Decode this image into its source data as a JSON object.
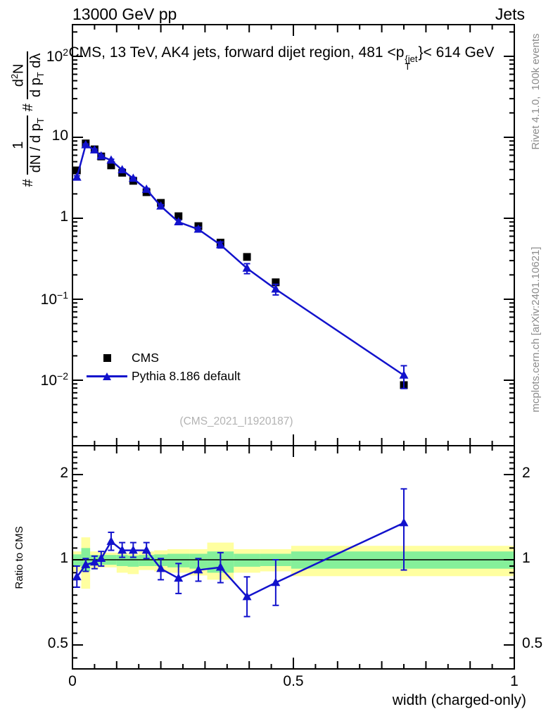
{
  "header": {
    "left": "13000 GeV pp",
    "right": "Jets"
  },
  "title": {
    "prefix": "CMS, 13 TeV, AK4 jets, forward dijet region, 481 <p",
    "sup": "{jet",
    "sub": "T",
    "suffix": "}< 614 GeV"
  },
  "ylabel": {
    "hash1": "#",
    "frac1_num": "1",
    "frac1_den": "dN / d p",
    "frac1_den_sub": "T",
    "hash2": "#",
    "frac2_num": "d",
    "frac2_num_sup": "2",
    "frac2_num_post": "N",
    "frac2_den": "d p",
    "frac2_den_sub": "T",
    "frac2_den_post": " dλ"
  },
  "legend": [
    {
      "label": "CMS",
      "marker": "square",
      "color": "#000000"
    },
    {
      "label": "Pythia 8.186 default",
      "marker": "triangle-line",
      "color": "#1212cc"
    }
  ],
  "watermark": "(CMS_2021_I1920187)",
  "side_notes": {
    "rivet": "Rivet 4.1.0,  100k events",
    "mcplots": "mcplots.cern.ch [arXiv:2401.10621]"
  },
  "xlabel": "width (charged-only)",
  "colors": {
    "pythia_blue": "#1212cc",
    "band_yellow": "#ffffa0",
    "band_green": "#85f09a",
    "frame": "#000000",
    "watermark_gray": "#b3b3b3",
    "side_gray": "#8c8c8c"
  },
  "chart_data": {
    "type": "line",
    "x_axis": {
      "label": "width (charged-only)",
      "lim": [
        0,
        1
      ],
      "tick_labels": [
        {
          "v": 0,
          "t": "0"
        },
        {
          "v": 0.5,
          "t": "0.5"
        },
        {
          "v": 1,
          "t": "1"
        }
      ]
    },
    "x_values": [
      0.01,
      0.03,
      0.05,
      0.065,
      0.0875,
      0.1125,
      0.1375,
      0.1675,
      0.2,
      0.24,
      0.285,
      0.335,
      0.395,
      0.46,
      0.75
    ],
    "main_panel": {
      "yscale": "log",
      "ylim": [
        0.00155,
        245
      ],
      "ytick_labels": [
        {
          "v": 100,
          "b": "10",
          "e": "2"
        },
        {
          "v": 10,
          "b": "10"
        },
        {
          "v": 1,
          "b": "1"
        },
        {
          "v": 0.1,
          "b": "10",
          "e": "−1"
        },
        {
          "v": 0.01,
          "b": "10",
          "e": "−2"
        }
      ],
      "series": [
        {
          "name": "CMS",
          "marker": "square",
          "color": "#000000",
          "line": false,
          "y": [
            3.9,
            8.4,
            7.1,
            5.8,
            4.5,
            3.65,
            2.9,
            2.1,
            1.55,
            1.06,
            0.8,
            0.5,
            0.333,
            0.162,
            0.0087
          ]
        },
        {
          "name": "Pythia 8.186 default",
          "marker": "triangle",
          "color": "#1212cc",
          "line": true,
          "y": [
            3.2,
            8.05,
            6.95,
            5.85,
            5.2,
            3.95,
            3.1,
            2.27,
            1.41,
            0.9,
            0.73,
            0.47,
            0.241,
            0.133,
            0.0115
          ],
          "yerr": [
            0.15,
            0.22,
            0.2,
            0.18,
            0.16,
            0.12,
            0.1,
            0.08,
            0.06,
            0.05,
            0.045,
            0.04,
            0.034,
            0.02,
            0.0036
          ]
        }
      ]
    },
    "ratio_panel": {
      "ylabel": "Ratio to CMS",
      "yscale": "log",
      "ylim": [
        0.41,
        2.54
      ],
      "unity_line": 1,
      "tick_labels": [
        {
          "v": 2,
          "t": "2"
        },
        {
          "v": 1,
          "t": "1"
        },
        {
          "v": 0.5,
          "t": "0.5"
        }
      ],
      "bands": {
        "bin_edges": [
          0,
          0.02,
          0.04,
          0.06,
          0.075,
          0.1,
          0.125,
          0.15,
          0.185,
          0.215,
          0.265,
          0.305,
          0.365,
          0.425,
          0.495,
          1.0
        ],
        "yellow_lo_hi": [
          [
            0.91,
            1.07
          ],
          [
            0.79,
            1.2
          ],
          [
            0.93,
            1.07
          ],
          [
            0.94,
            1.06
          ],
          [
            0.94,
            1.06
          ],
          [
            0.9,
            1.06
          ],
          [
            0.89,
            1.05
          ],
          [
            0.92,
            1.07
          ],
          [
            0.91,
            1.08
          ],
          [
            0.9,
            1.09
          ],
          [
            0.88,
            1.09
          ],
          [
            0.85,
            1.15
          ],
          [
            0.9,
            1.09
          ],
          [
            0.91,
            1.09
          ],
          [
            0.875,
            1.12
          ]
        ],
        "green_lo_hi": [
          [
            0.95,
            1.045
          ],
          [
            0.91,
            1.1
          ],
          [
            0.955,
            1.04
          ],
          [
            0.96,
            1.04
          ],
          [
            0.96,
            1.04
          ],
          [
            0.95,
            1.04
          ],
          [
            0.945,
            1.035
          ],
          [
            0.95,
            1.04
          ],
          [
            0.95,
            1.045
          ],
          [
            0.94,
            1.05
          ],
          [
            0.93,
            1.05
          ],
          [
            0.9,
            1.07
          ],
          [
            0.945,
            1.05
          ],
          [
            0.95,
            1.05
          ],
          [
            0.93,
            1.07
          ]
        ]
      },
      "series": {
        "name": "Pythia 8.186 default / CMS",
        "color": "#1212cc",
        "y": [
          0.87,
          0.96,
          0.98,
          1.01,
          1.16,
          1.08,
          1.08,
          1.08,
          0.93,
          0.86,
          0.92,
          0.94,
          0.74,
          0.83,
          1.35
        ],
        "y_lo": [
          0.8,
          0.91,
          0.93,
          0.95,
          1.08,
          1.02,
          1.02,
          1.01,
          0.85,
          0.76,
          0.84,
          0.83,
          0.63,
          0.69,
          0.92
        ],
        "y_hi": [
          0.95,
          1.01,
          1.03,
          1.07,
          1.25,
          1.15,
          1.15,
          1.15,
          1.01,
          0.97,
          1.01,
          1.06,
          0.87,
          1.0,
          1.78
        ]
      }
    }
  }
}
